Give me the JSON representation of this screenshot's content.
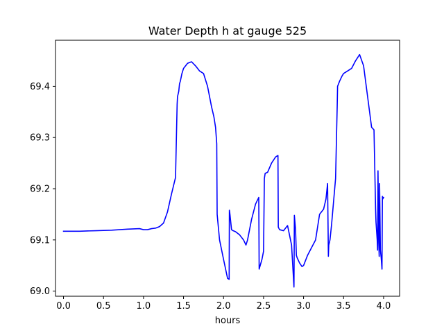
{
  "chart_data": {
    "type": "line",
    "title": "Water Depth h at gauge 525",
    "xlabel": "hours",
    "ylabel": "",
    "xlim": [
      -0.1,
      4.2
    ],
    "ylim": [
      68.99,
      69.49
    ],
    "x_ticks": [
      0.0,
      0.5,
      1.0,
      1.5,
      2.0,
      2.5,
      3.0,
      3.5,
      4.0
    ],
    "x_tick_labels": [
      "0.0",
      "0.5",
      "1.0",
      "1.5",
      "2.0",
      "2.5",
      "3.0",
      "3.5",
      "4.0"
    ],
    "y_ticks": [
      69.0,
      69.1,
      69.2,
      69.3,
      69.4
    ],
    "y_tick_labels": [
      "69.0",
      "69.1",
      "69.2",
      "69.3",
      "69.4"
    ],
    "grid": false,
    "legend": null,
    "series": [
      {
        "color": "#0000ff",
        "x": [
          0.0,
          0.2,
          0.4,
          0.6,
          0.8,
          0.95,
          1.0,
          1.05,
          1.1,
          1.15,
          1.2,
          1.25,
          1.3,
          1.35,
          1.4,
          1.42,
          1.425,
          1.44,
          1.45,
          1.46,
          1.48,
          1.5,
          1.55,
          1.6,
          1.65,
          1.7,
          1.75,
          1.8,
          1.85,
          1.88,
          1.9,
          1.915,
          1.92,
          1.95,
          2.0,
          2.05,
          2.07,
          2.073,
          2.08,
          2.1,
          2.12,
          2.15,
          2.2,
          2.25,
          2.28,
          2.3,
          2.35,
          2.4,
          2.44,
          2.445,
          2.48,
          2.5,
          2.51,
          2.52,
          2.55,
          2.6,
          2.65,
          2.68,
          2.684,
          2.7,
          2.75,
          2.8,
          2.85,
          2.88,
          2.885,
          2.9,
          2.91,
          2.92,
          2.95,
          2.98,
          3.0,
          3.05,
          3.1,
          3.15,
          3.2,
          3.25,
          3.28,
          3.3,
          3.31,
          3.315,
          3.33,
          3.35,
          3.4,
          3.42,
          3.425,
          3.45,
          3.48,
          3.5,
          3.55,
          3.6,
          3.65,
          3.7,
          3.75,
          3.8,
          3.85,
          3.88,
          3.9,
          3.905,
          3.92,
          3.925,
          3.93,
          3.94,
          3.945,
          3.95,
          3.96,
          3.97,
          3.98,
          3.985,
          3.99,
          4.0
        ],
        "y": [
          69.117,
          69.117,
          69.118,
          69.119,
          69.121,
          69.122,
          69.12,
          69.12,
          69.122,
          69.123,
          69.126,
          69.133,
          69.155,
          69.19,
          69.222,
          69.365,
          69.38,
          69.39,
          69.405,
          69.41,
          69.425,
          69.435,
          69.445,
          69.448,
          69.44,
          69.43,
          69.425,
          69.4,
          69.36,
          69.34,
          69.32,
          69.288,
          69.15,
          69.1,
          69.062,
          69.025,
          69.023,
          69.158,
          69.15,
          69.12,
          69.118,
          69.116,
          69.11,
          69.1,
          69.09,
          69.1,
          69.14,
          69.17,
          69.183,
          69.043,
          69.062,
          69.078,
          69.22,
          69.23,
          69.232,
          69.25,
          69.262,
          69.265,
          69.125,
          69.12,
          69.118,
          69.128,
          69.09,
          69.008,
          69.148,
          69.12,
          69.07,
          69.065,
          69.055,
          69.048,
          69.05,
          69.07,
          69.085,
          69.1,
          69.15,
          69.16,
          69.18,
          69.21,
          69.068,
          69.09,
          69.1,
          69.13,
          69.22,
          69.36,
          69.4,
          69.41,
          69.42,
          69.425,
          69.43,
          69.435,
          69.45,
          69.462,
          69.44,
          69.38,
          69.32,
          69.315,
          69.16,
          69.135,
          69.1,
          69.08,
          69.235,
          69.095,
          69.068,
          69.21,
          69.08,
          69.065,
          69.043,
          69.185,
          69.18,
          69.183
        ]
      }
    ]
  }
}
